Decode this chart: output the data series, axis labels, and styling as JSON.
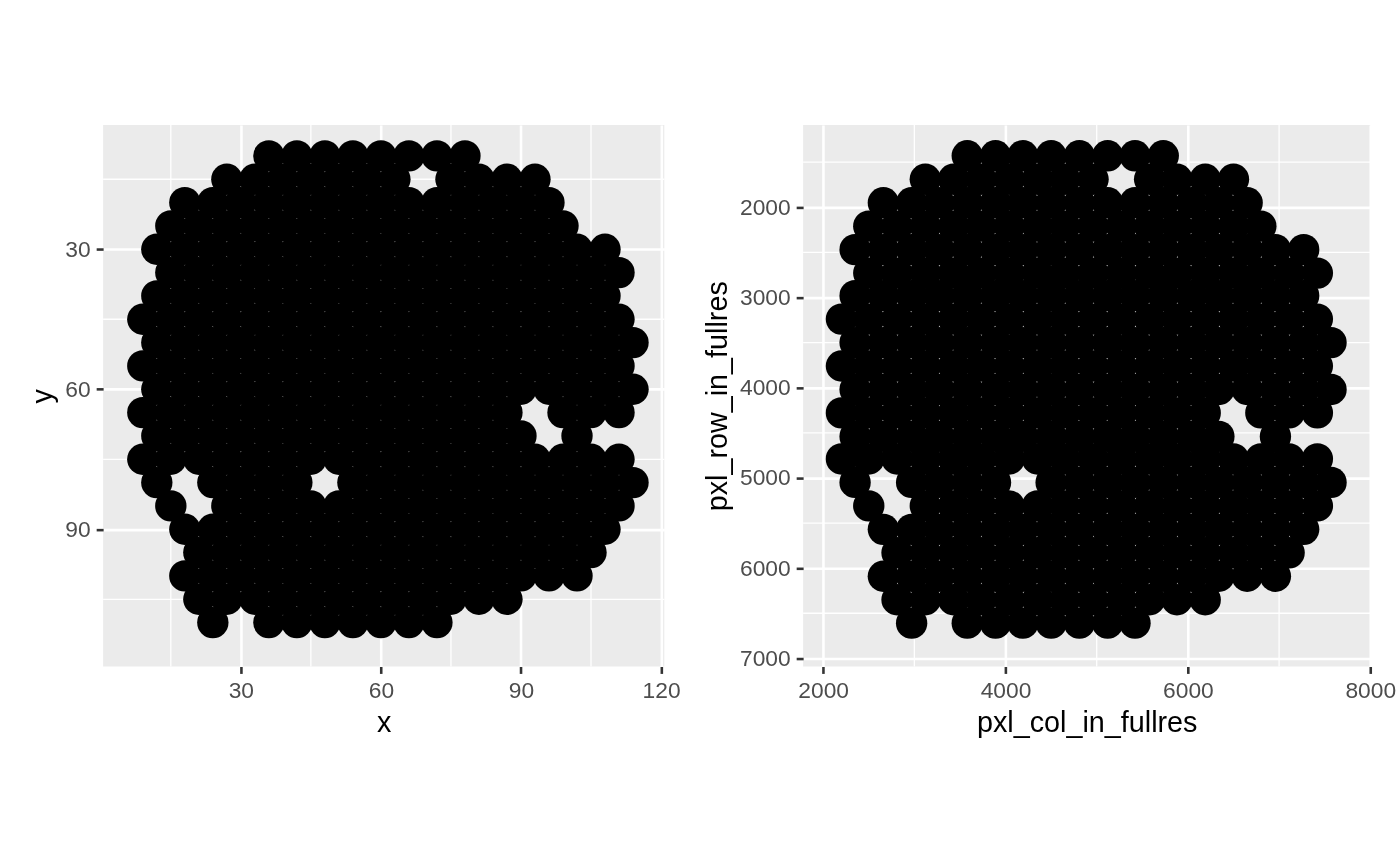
{
  "chart_data": [
    {
      "type": "scatter",
      "xlabel": "x",
      "ylabel": "y",
      "xlim": [
        0.5,
        120.7
      ],
      "ylim": [
        119.4,
        3.4
      ],
      "xticks": [
        30,
        60,
        90,
        120
      ],
      "yticks": [
        30,
        60,
        90
      ],
      "grid": true,
      "marker": "circle",
      "series": [
        {
          "color": "#000000",
          "x": [
            36,
            42,
            48,
            54,
            60,
            66,
            72,
            78,
            27,
            33,
            39,
            45,
            51,
            57,
            63,
            75,
            81,
            87,
            93,
            18,
            24,
            30,
            36,
            42,
            48,
            54,
            60,
            66,
            72,
            78,
            84,
            90,
            96,
            15,
            21,
            27,
            33,
            39,
            45,
            51,
            57,
            63,
            69,
            75,
            81,
            87,
            93,
            99,
            12,
            18,
            24,
            30,
            36,
            42,
            48,
            54,
            60,
            66,
            72,
            78,
            84,
            90,
            96,
            102,
            108,
            15,
            21,
            27,
            33,
            39,
            45,
            51,
            57,
            63,
            69,
            75,
            81,
            87,
            93,
            99,
            105,
            111,
            12,
            18,
            24,
            30,
            36,
            42,
            48,
            54,
            60,
            66,
            72,
            78,
            84,
            90,
            96,
            102,
            108,
            9,
            15,
            21,
            27,
            33,
            39,
            45,
            51,
            57,
            63,
            69,
            75,
            81,
            87,
            93,
            99,
            105,
            111,
            12,
            18,
            24,
            30,
            36,
            42,
            48,
            54,
            60,
            66,
            72,
            78,
            84,
            90,
            96,
            102,
            108,
            114,
            9,
            15,
            21,
            27,
            33,
            39,
            45,
            51,
            57,
            63,
            69,
            75,
            81,
            87,
            93,
            99,
            105,
            111,
            12,
            18,
            24,
            30,
            36,
            42,
            48,
            54,
            60,
            66,
            72,
            78,
            84,
            90,
            96,
            102,
            108,
            114,
            9,
            15,
            21,
            27,
            33,
            39,
            45,
            51,
            57,
            63,
            69,
            75,
            81,
            87,
            99,
            105,
            111,
            12,
            18,
            24,
            30,
            36,
            42,
            48,
            54,
            60,
            66,
            72,
            78,
            84,
            90,
            102,
            9,
            15,
            21,
            27,
            33,
            39,
            45,
            51,
            57,
            63,
            69,
            75,
            81,
            87,
            93,
            99,
            105,
            111,
            12,
            24,
            30,
            36,
            42,
            54,
            60,
            66,
            72,
            78,
            84,
            90,
            96,
            102,
            108,
            114,
            15,
            27,
            33,
            39,
            45,
            51,
            57,
            63,
            69,
            75,
            81,
            87,
            93,
            99,
            105,
            111,
            18,
            24,
            30,
            36,
            42,
            48,
            54,
            60,
            66,
            72,
            78,
            84,
            90,
            96,
            102,
            108,
            21,
            27,
            33,
            39,
            45,
            51,
            57,
            63,
            69,
            75,
            81,
            87,
            93,
            99,
            105,
            18,
            24,
            30,
            36,
            42,
            48,
            54,
            60,
            66,
            72,
            78,
            84,
            90,
            96,
            102,
            21,
            27,
            33,
            39,
            45,
            51,
            57,
            63,
            69,
            75,
            81,
            87,
            24,
            36,
            42,
            48,
            54,
            60,
            66,
            72
          ],
          "values": [
            10,
            10,
            10,
            10,
            10,
            10,
            10,
            10,
            15,
            15,
            15,
            15,
            15,
            15,
            15,
            15,
            15,
            15,
            15,
            20,
            20,
            20,
            20,
            20,
            20,
            20,
            20,
            20,
            20,
            20,
            20,
            20,
            20,
            25,
            25,
            25,
            25,
            25,
            25,
            25,
            25,
            25,
            25,
            25,
            25,
            25,
            25,
            25,
            30,
            30,
            30,
            30,
            30,
            30,
            30,
            30,
            30,
            30,
            30,
            30,
            30,
            30,
            30,
            30,
            30,
            35,
            35,
            35,
            35,
            35,
            35,
            35,
            35,
            35,
            35,
            35,
            35,
            35,
            35,
            35,
            35,
            35,
            40,
            40,
            40,
            40,
            40,
            40,
            40,
            40,
            40,
            40,
            40,
            40,
            40,
            40,
            40,
            40,
            40,
            45,
            45,
            45,
            45,
            45,
            45,
            45,
            45,
            45,
            45,
            45,
            45,
            45,
            45,
            45,
            45,
            45,
            45,
            50,
            50,
            50,
            50,
            50,
            50,
            50,
            50,
            50,
            50,
            50,
            50,
            50,
            50,
            50,
            50,
            50,
            50,
            55,
            55,
            55,
            55,
            55,
            55,
            55,
            55,
            55,
            55,
            55,
            55,
            55,
            55,
            55,
            55,
            55,
            55,
            60,
            60,
            60,
            60,
            60,
            60,
            60,
            60,
            60,
            60,
            60,
            60,
            60,
            60,
            60,
            60,
            60,
            60,
            65,
            65,
            65,
            65,
            65,
            65,
            65,
            65,
            65,
            65,
            65,
            65,
            65,
            65,
            65,
            65,
            65,
            70,
            70,
            70,
            70,
            70,
            70,
            70,
            70,
            70,
            70,
            70,
            70,
            70,
            70,
            70,
            75,
            75,
            75,
            75,
            75,
            75,
            75,
            75,
            75,
            75,
            75,
            75,
            75,
            75,
            75,
            75,
            75,
            75,
            80,
            80,
            80,
            80,
            80,
            80,
            80,
            80,
            80,
            80,
            80,
            80,
            80,
            80,
            80,
            80,
            85,
            85,
            85,
            85,
            85,
            85,
            85,
            85,
            85,
            85,
            85,
            85,
            85,
            85,
            85,
            85,
            90,
            90,
            90,
            90,
            90,
            90,
            90,
            90,
            90,
            90,
            90,
            90,
            90,
            90,
            90,
            90,
            95,
            95,
            95,
            95,
            95,
            95,
            95,
            95,
            95,
            95,
            95,
            95,
            95,
            95,
            95,
            100,
            100,
            100,
            100,
            100,
            100,
            100,
            100,
            100,
            100,
            100,
            100,
            100,
            100,
            100,
            105,
            105,
            105,
            105,
            105,
            105,
            105,
            105,
            105,
            105,
            105,
            105,
            110,
            110,
            110,
            110,
            110,
            110,
            110,
            110
          ]
        }
      ]
    },
    {
      "type": "scatter",
      "xlabel": "pxl_col_in_fullres",
      "ylabel": "pxl_row_in_fullres",
      "xlim": [
        1780,
        8000
      ],
      "ylim": [
        7090,
        1090
      ],
      "xticks": [
        2000,
        4000,
        6000,
        8000
      ],
      "yticks": [
        2000,
        3000,
        4000,
        5000,
        6000,
        7000
      ],
      "grid": true,
      "marker": "circle",
      "series": [
        {
          "color": "#000000",
          "x": [
            3580,
            3890,
            4190,
            4500,
            4810,
            5120,
            5420,
            5730,
            3120,
            3430,
            3730,
            4040,
            4350,
            4650,
            4960,
            5580,
            5880,
            6190,
            6500,
            2660,
            2970,
            3270,
            3580,
            3890,
            4190,
            4500,
            4810,
            5120,
            5420,
            5730,
            6040,
            6340,
            6650,
            2500,
            2810,
            3120,
            3430,
            3730,
            4040,
            4350,
            4650,
            4960,
            5270,
            5580,
            5880,
            6190,
            6500,
            6800,
            2350,
            2660,
            2970,
            3270,
            3580,
            3890,
            4190,
            4500,
            4810,
            5120,
            5420,
            5730,
            6040,
            6340,
            6650,
            6960,
            7270,
            2500,
            2810,
            3120,
            3430,
            3730,
            4040,
            4350,
            4650,
            4960,
            5270,
            5580,
            5880,
            6190,
            6500,
            6800,
            7110,
            7420,
            2350,
            2660,
            2970,
            3270,
            3580,
            3890,
            4190,
            4500,
            4810,
            5120,
            5420,
            5730,
            6040,
            6340,
            6650,
            6960,
            7270,
            2200,
            2500,
            2810,
            3120,
            3430,
            3730,
            4040,
            4350,
            4650,
            4960,
            5270,
            5580,
            5880,
            6190,
            6500,
            6800,
            7110,
            7420,
            2350,
            2660,
            2970,
            3270,
            3580,
            3890,
            4190,
            4500,
            4810,
            5120,
            5420,
            5730,
            6040,
            6340,
            6650,
            6960,
            7270,
            7570,
            2200,
            2500,
            2810,
            3120,
            3430,
            3730,
            4040,
            4350,
            4650,
            4960,
            5270,
            5580,
            5880,
            6190,
            6500,
            6800,
            7110,
            7420,
            2350,
            2660,
            2970,
            3270,
            3580,
            3890,
            4190,
            4500,
            4810,
            5120,
            5420,
            5730,
            6040,
            6340,
            6650,
            6960,
            7270,
            7570,
            2200,
            2500,
            2810,
            3120,
            3430,
            3730,
            4040,
            4350,
            4650,
            4960,
            5270,
            5580,
            5880,
            6190,
            6800,
            7110,
            7420,
            2350,
            2660,
            2970,
            3270,
            3580,
            3890,
            4190,
            4500,
            4810,
            5120,
            5420,
            5730,
            6040,
            6340,
            6960,
            2200,
            2500,
            2810,
            3120,
            3430,
            3730,
            4040,
            4350,
            4650,
            4960,
            5270,
            5580,
            5880,
            6190,
            6500,
            6800,
            7110,
            7420,
            2350,
            2970,
            3270,
            3580,
            3890,
            4500,
            4810,
            5120,
            5420,
            5730,
            6040,
            6340,
            6650,
            6960,
            7270,
            7570,
            2500,
            3120,
            3430,
            3730,
            4040,
            4350,
            4650,
            4960,
            5270,
            5580,
            5880,
            6190,
            6500,
            6800,
            7110,
            7420,
            2660,
            2970,
            3270,
            3580,
            3890,
            4190,
            4500,
            4810,
            5120,
            5420,
            5730,
            6040,
            6340,
            6650,
            6960,
            7270,
            2810,
            3120,
            3430,
            3730,
            4040,
            4350,
            4650,
            4960,
            5270,
            5580,
            5880,
            6190,
            6500,
            6800,
            7110,
            2660,
            2970,
            3270,
            3580,
            3890,
            4190,
            4500,
            4810,
            5120,
            5420,
            5730,
            6040,
            6340,
            6650,
            6960,
            2810,
            3120,
            3430,
            3730,
            4040,
            4350,
            4650,
            4960,
            5270,
            5580,
            5880,
            6190,
            2970,
            3580,
            3890,
            4190,
            4500,
            4810,
            5120,
            5420
          ],
          "values": [
            1430,
            1430,
            1430,
            1430,
            1430,
            1430,
            1430,
            1430,
            1690,
            1690,
            1690,
            1690,
            1690,
            1690,
            1690,
            1690,
            1690,
            1690,
            1690,
            1950,
            1950,
            1950,
            1950,
            1950,
            1950,
            1950,
            1950,
            1950,
            1950,
            1950,
            1950,
            1950,
            1950,
            2210,
            2210,
            2210,
            2210,
            2210,
            2210,
            2210,
            2210,
            2210,
            2210,
            2210,
            2210,
            2210,
            2210,
            2210,
            2470,
            2470,
            2470,
            2470,
            2470,
            2470,
            2470,
            2470,
            2470,
            2470,
            2470,
            2470,
            2470,
            2470,
            2470,
            2470,
            2470,
            2730,
            2730,
            2730,
            2730,
            2730,
            2730,
            2730,
            2730,
            2730,
            2730,
            2730,
            2730,
            2730,
            2730,
            2730,
            2730,
            2730,
            2980,
            2980,
            2980,
            2980,
            2980,
            2980,
            2980,
            2980,
            2980,
            2980,
            2980,
            2980,
            2980,
            2980,
            2980,
            2980,
            2980,
            3240,
            3240,
            3240,
            3240,
            3240,
            3240,
            3240,
            3240,
            3240,
            3240,
            3240,
            3240,
            3240,
            3240,
            3240,
            3240,
            3240,
            3240,
            3500,
            3500,
            3500,
            3500,
            3500,
            3500,
            3500,
            3500,
            3500,
            3500,
            3500,
            3500,
            3500,
            3500,
            3500,
            3500,
            3500,
            3500,
            3760,
            3760,
            3760,
            3760,
            3760,
            3760,
            3760,
            3760,
            3760,
            3760,
            3760,
            3760,
            3760,
            3760,
            3760,
            3760,
            3760,
            3760,
            4020,
            4020,
            4020,
            4020,
            4020,
            4020,
            4020,
            4020,
            4020,
            4020,
            4020,
            4020,
            4020,
            4020,
            4020,
            4020,
            4020,
            4020,
            4280,
            4280,
            4280,
            4280,
            4280,
            4280,
            4280,
            4280,
            4280,
            4280,
            4280,
            4280,
            4280,
            4280,
            4280,
            4280,
            4280,
            4540,
            4540,
            4540,
            4540,
            4540,
            4540,
            4540,
            4540,
            4540,
            4540,
            4540,
            4540,
            4540,
            4540,
            4540,
            4790,
            4790,
            4790,
            4790,
            4790,
            4790,
            4790,
            4790,
            4790,
            4790,
            4790,
            4790,
            4790,
            4790,
            4790,
            4790,
            4790,
            4790,
            5050,
            5050,
            5050,
            5050,
            5050,
            5050,
            5050,
            5050,
            5050,
            5050,
            5050,
            5050,
            5050,
            5050,
            5050,
            5050,
            5310,
            5310,
            5310,
            5310,
            5310,
            5310,
            5310,
            5310,
            5310,
            5310,
            5310,
            5310,
            5310,
            5310,
            5310,
            5310,
            5570,
            5570,
            5570,
            5570,
            5570,
            5570,
            5570,
            5570,
            5570,
            5570,
            5570,
            5570,
            5570,
            5570,
            5570,
            5570,
            5830,
            5830,
            5830,
            5830,
            5830,
            5830,
            5830,
            5830,
            5830,
            5830,
            5830,
            5830,
            5830,
            5830,
            5830,
            6090,
            6090,
            6090,
            6090,
            6090,
            6090,
            6090,
            6090,
            6090,
            6090,
            6090,
            6090,
            6090,
            6090,
            6090,
            6350,
            6350,
            6350,
            6350,
            6350,
            6350,
            6350,
            6350,
            6350,
            6350,
            6350,
            6350,
            6610,
            6610,
            6610,
            6610,
            6610,
            6610,
            6610,
            6610
          ]
        }
      ]
    }
  ]
}
